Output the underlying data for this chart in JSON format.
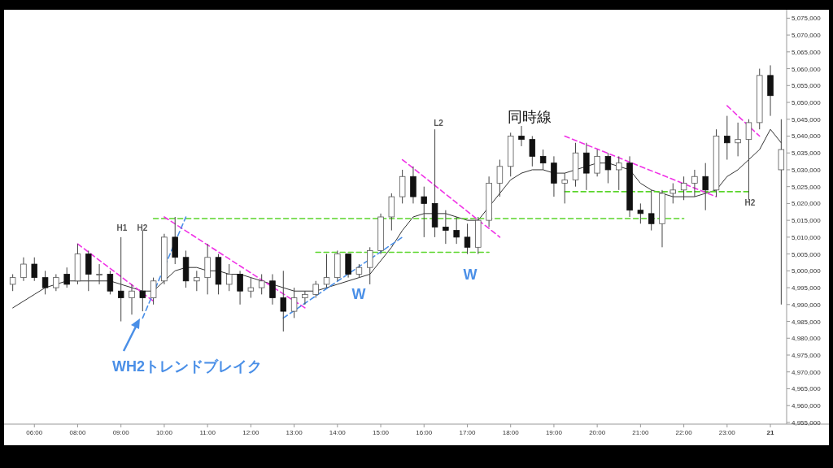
{
  "chart_data": {
    "type": "candlestick",
    "categories": [
      null,
      null,
      "06:00",
      null,
      null,
      null,
      "08:00",
      null,
      null,
      null,
      "09:00",
      null,
      null,
      null,
      "10:00",
      null,
      null,
      null,
      "11:00",
      null,
      null,
      null,
      "12:00",
      null,
      null,
      null,
      "13:00",
      null,
      null,
      null,
      "14:00",
      null,
      null,
      null,
      "15:00",
      null,
      null,
      null,
      "16:00",
      null,
      null,
      null,
      "17:00",
      null,
      null,
      null,
      "18:00",
      null,
      null,
      null,
      "19:00",
      null,
      null,
      null,
      "20:00",
      null,
      null,
      null,
      "21:00",
      null,
      null,
      null,
      "22:00",
      null,
      null,
      null,
      "23:00",
      null,
      null,
      null,
      "21",
      null
    ],
    "ohlc": [
      [
        4996000,
        4999000,
        4994000,
        4998000
      ],
      [
        4998000,
        5004000,
        4997000,
        5002000
      ],
      [
        5002000,
        5004000,
        4997000,
        4998000
      ],
      [
        4998000,
        5000000,
        4993000,
        4995000
      ],
      [
        4995000,
        4999000,
        4994000,
        4998000
      ],
      [
        4999000,
        5001000,
        4995000,
        4996000
      ],
      [
        4997000,
        5008000,
        4996000,
        5005000
      ],
      [
        5005000,
        5006000,
        4994000,
        4999000
      ],
      [
        4999000,
        5002000,
        4996000,
        4999000
      ],
      [
        4999000,
        5000000,
        4993000,
        4994000
      ],
      [
        4994000,
        5010000,
        4985000,
        4992000
      ],
      [
        4992000,
        4996000,
        4987000,
        4994000
      ],
      [
        4994000,
        5012000,
        4988000,
        4992000
      ],
      [
        4992000,
        4998000,
        4990000,
        4997000
      ],
      [
        4997000,
        5011000,
        4996000,
        5010000
      ],
      [
        5010000,
        5016000,
        5002000,
        5004000
      ],
      [
        5004000,
        5006000,
        4995000,
        4997000
      ],
      [
        4997000,
        5000000,
        4994000,
        4998000
      ],
      [
        4998000,
        5008000,
        4993000,
        5004000
      ],
      [
        5004000,
        5005000,
        4993000,
        4996000
      ],
      [
        4996000,
        5002000,
        4994000,
        4999000
      ],
      [
        4999000,
        5000000,
        4990000,
        4994000
      ],
      [
        4994000,
        4998000,
        4992000,
        4995000
      ],
      [
        4995000,
        4999000,
        4993000,
        4997000
      ],
      [
        4997000,
        4999000,
        4990000,
        4992000
      ],
      [
        4992000,
        5000000,
        4982000,
        4988000
      ],
      [
        4988000,
        4995000,
        4986000,
        4992000
      ],
      [
        4992000,
        4994000,
        4990000,
        4993000
      ],
      [
        4993000,
        4997000,
        4992000,
        4996000
      ],
      [
        4996000,
        5005000,
        4995000,
        4998000
      ],
      [
        4998000,
        5006000,
        4997000,
        5005000
      ],
      [
        5005000,
        5005000,
        4998000,
        4999000
      ],
      [
        4999000,
        5002000,
        4998000,
        5001000
      ],
      [
        5001000,
        5007000,
        4996000,
        5006000
      ],
      [
        5006000,
        5017000,
        5005000,
        5016000
      ],
      [
        5016000,
        5023000,
        5012000,
        5022000
      ],
      [
        5022000,
        5030000,
        5020000,
        5028000
      ],
      [
        5028000,
        5031000,
        5020000,
        5022000
      ],
      [
        5022000,
        5025000,
        5010000,
        5020000
      ],
      [
        5020000,
        5042000,
        5010000,
        5013000
      ],
      [
        5013000,
        5018000,
        5008000,
        5012000
      ],
      [
        5012000,
        5016000,
        5008000,
        5010000
      ],
      [
        5010000,
        5014000,
        5005000,
        5007000
      ],
      [
        5007000,
        5016000,
        5005000,
        5015000
      ],
      [
        5015000,
        5028000,
        5013000,
        5026000
      ],
      [
        5026000,
        5033000,
        5022000,
        5031000
      ],
      [
        5031000,
        5041000,
        5028000,
        5040000
      ],
      [
        5040000,
        5043000,
        5037000,
        5039000
      ],
      [
        5039000,
        5040000,
        5031000,
        5034000
      ],
      [
        5034000,
        5036000,
        5030000,
        5032000
      ],
      [
        5032000,
        5034000,
        5022000,
        5026000
      ],
      [
        5026000,
        5029000,
        5020000,
        5027000
      ],
      [
        5027000,
        5038000,
        5025000,
        5035000
      ],
      [
        5035000,
        5038000,
        5024000,
        5029000
      ],
      [
        5029000,
        5036000,
        5028000,
        5034000
      ],
      [
        5034000,
        5035000,
        5026000,
        5030000
      ],
      [
        5030000,
        5034000,
        5024000,
        5032000
      ],
      [
        5032000,
        5034000,
        5016000,
        5018000
      ],
      [
        5018000,
        5020000,
        5014000,
        5017000
      ],
      [
        5017000,
        5024000,
        5012000,
        5014000
      ],
      [
        5014000,
        5024000,
        5007000,
        5023000
      ],
      [
        5023000,
        5026000,
        5020000,
        5024000
      ],
      [
        5024000,
        5028000,
        5021000,
        5026000
      ],
      [
        5026000,
        5030000,
        5022000,
        5028000
      ],
      [
        5028000,
        5032000,
        5018000,
        5024000
      ],
      [
        5024000,
        5042000,
        5022000,
        5040000
      ],
      [
        5040000,
        5046000,
        5033000,
        5038000
      ],
      [
        5038000,
        5044000,
        5034000,
        5039000
      ],
      [
        5039000,
        5045000,
        5021000,
        5044000
      ],
      [
        5044000,
        5060000,
        5042000,
        5058000
      ],
      [
        5058000,
        5061000,
        5046000,
        5052000
      ],
      [
        5030000,
        5045000,
        4990000,
        5036000
      ]
    ],
    "series": [
      {
        "type": "line",
        "color": "#333333",
        "values": [
          4989000,
          4991000,
          4993000,
          4995000,
          4996000,
          4997000,
          4997000,
          4997000,
          4997000,
          4997000,
          4996000,
          4995000,
          4994000,
          4994000,
          4997000,
          5000000,
          5001000,
          5001000,
          5000000,
          5000000,
          4999000,
          4999000,
          4998000,
          4997000,
          4996000,
          4995000,
          4994000,
          4994000,
          4994000,
          4995000,
          4996000,
          4997000,
          4998000,
          4999000,
          5003000,
          5007000,
          5012000,
          5016000,
          5017000,
          5017000,
          5017000,
          5016000,
          5015000,
          5015000,
          5019000,
          5023000,
          5027000,
          5029000,
          5030000,
          5030000,
          5029000,
          5029000,
          5030000,
          5031000,
          5032000,
          5032000,
          5031000,
          5030000,
          5026000,
          5024000,
          5023000,
          5022000,
          5022000,
          5022000,
          5023000,
          5024000,
          5028000,
          5030000,
          5033000,
          5036000,
          5042000,
          5038000
        ]
      },
      {
        "type": "line",
        "color": "#5ad52a",
        "line_style": "dashed",
        "values": [
          null,
          null,
          null,
          null,
          null,
          null,
          null,
          null,
          null,
          null,
          null,
          null,
          null,
          5015500,
          null,
          null,
          null,
          null,
          null,
          null,
          null,
          null,
          null,
          null,
          null,
          null,
          null,
          null,
          null,
          null,
          null,
          null,
          null,
          null,
          null,
          null,
          null,
          null,
          null,
          null,
          null,
          null,
          null,
          null,
          null,
          null,
          null,
          null,
          null,
          null,
          null,
          null,
          null,
          null,
          null,
          null,
          null,
          null,
          null,
          null,
          null,
          null,
          5015500,
          null,
          null,
          null,
          null,
          null,
          null,
          null,
          null,
          null
        ]
      },
      {
        "type": "line",
        "color": "#5ad52a",
        "line_style": "dashed",
        "values": [
          null,
          null,
          null,
          null,
          null,
          null,
          null,
          null,
          null,
          null,
          null,
          null,
          null,
          null,
          null,
          null,
          null,
          null,
          null,
          null,
          null,
          null,
          null,
          null,
          null,
          null,
          null,
          null,
          5005500,
          null,
          null,
          null,
          null,
          null,
          null,
          null,
          null,
          null,
          null,
          null,
          null,
          null,
          null,
          null,
          5005500,
          null,
          null,
          null,
          null,
          null,
          null,
          null,
          null,
          null,
          null,
          null,
          null,
          null,
          null,
          null,
          null,
          null,
          null,
          null,
          null,
          null,
          null,
          null,
          null,
          null,
          null,
          null
        ]
      },
      {
        "type": "line",
        "color": "#5ad52a",
        "line_style": "dashed",
        "values": [
          null,
          null,
          null,
          null,
          null,
          null,
          null,
          null,
          null,
          null,
          null,
          null,
          null,
          null,
          null,
          null,
          null,
          null,
          null,
          null,
          null,
          null,
          null,
          null,
          null,
          null,
          null,
          null,
          null,
          null,
          null,
          null,
          null,
          null,
          null,
          null,
          null,
          null,
          null,
          null,
          null,
          null,
          null,
          null,
          null,
          null,
          null,
          null,
          null,
          null,
          null,
          5023500,
          null,
          null,
          null,
          null,
          null,
          null,
          null,
          null,
          null,
          null,
          null,
          null,
          null,
          null,
          null,
          null,
          5023500,
          null,
          null,
          null
        ]
      },
      {
        "type": "line",
        "color": "#f032e6",
        "line_style": "dashed",
        "values": [
          null,
          null,
          null,
          null,
          null,
          null,
          5008000,
          null,
          null,
          null,
          null,
          null,
          null,
          4991000,
          null,
          null,
          null,
          null,
          null,
          null,
          null,
          null,
          null,
          null,
          null,
          null,
          null,
          null,
          null,
          null,
          null,
          null,
          null,
          null,
          null,
          null,
          null,
          null,
          null,
          null,
          null,
          null,
          null,
          null,
          null,
          null,
          null,
          null,
          null,
          null,
          null,
          null,
          null,
          null,
          null,
          null,
          null,
          null,
          null,
          null,
          null,
          null,
          null,
          null,
          null,
          null,
          null,
          null,
          null,
          null,
          null,
          null
        ]
      },
      {
        "type": "line",
        "color": "#f032e6",
        "line_style": "dashed",
        "values": [
          null,
          null,
          null,
          null,
          null,
          null,
          null,
          null,
          null,
          null,
          null,
          null,
          null,
          null,
          5016000,
          null,
          null,
          null,
          null,
          null,
          null,
          null,
          null,
          null,
          null,
          null,
          null,
          4989000,
          null,
          null,
          null,
          null,
          null,
          null,
          null,
          null,
          null,
          null,
          null,
          null,
          null,
          null,
          null,
          null,
          null,
          null,
          null,
          null,
          null,
          null,
          null,
          null,
          null,
          null,
          null,
          null,
          null,
          null,
          null,
          null,
          null,
          null,
          null,
          null,
          null,
          null,
          null,
          null,
          null,
          null,
          null,
          null
        ]
      },
      {
        "type": "line",
        "color": "#f032e6",
        "line_style": "dashed",
        "values": [
          null,
          null,
          null,
          null,
          null,
          null,
          null,
          null,
          null,
          null,
          null,
          null,
          null,
          null,
          null,
          null,
          null,
          null,
          null,
          null,
          null,
          null,
          null,
          null,
          null,
          null,
          null,
          null,
          null,
          null,
          null,
          null,
          null,
          null,
          null,
          null,
          5033000,
          null,
          null,
          null,
          null,
          null,
          null,
          null,
          null,
          5010000,
          null,
          null,
          null,
          null,
          null,
          null,
          null,
          null,
          null,
          null,
          null,
          null,
          null,
          null,
          null,
          null,
          null,
          null,
          null,
          null,
          null,
          null,
          null,
          null,
          null,
          null
        ]
      },
      {
        "type": "line",
        "color": "#f032e6",
        "line_style": "dashed",
        "values": [
          null,
          null,
          null,
          null,
          null,
          null,
          null,
          null,
          null,
          null,
          null,
          null,
          null,
          null,
          null,
          null,
          null,
          null,
          null,
          null,
          null,
          null,
          null,
          null,
          null,
          null,
          null,
          null,
          null,
          null,
          null,
          null,
          null,
          null,
          null,
          null,
          null,
          null,
          null,
          null,
          null,
          null,
          null,
          null,
          null,
          null,
          null,
          null,
          null,
          null,
          null,
          5040000,
          null,
          null,
          null,
          null,
          null,
          null,
          null,
          null,
          null,
          null,
          null,
          null,
          null,
          5022000,
          null,
          null,
          null,
          null,
          null,
          null
        ]
      },
      {
        "type": "line",
        "color": "#f032e6",
        "line_style": "dashed",
        "values": [
          null,
          null,
          null,
          null,
          null,
          null,
          null,
          null,
          null,
          null,
          null,
          null,
          null,
          null,
          null,
          null,
          null,
          null,
          null,
          null,
          null,
          null,
          null,
          null,
          null,
          null,
          null,
          null,
          null,
          null,
          null,
          null,
          null,
          null,
          null,
          null,
          null,
          null,
          null,
          null,
          null,
          null,
          null,
          null,
          null,
          null,
          null,
          null,
          null,
          null,
          null,
          null,
          null,
          null,
          null,
          null,
          null,
          null,
          null,
          null,
          null,
          null,
          null,
          null,
          null,
          null,
          5049000,
          null,
          null,
          5040000,
          null,
          null
        ]
      },
      {
        "type": "line",
        "color": "#4a8fe7",
        "line_style": "dashed",
        "values": [
          null,
          null,
          null,
          null,
          null,
          null,
          null,
          null,
          null,
          null,
          null,
          null,
          4986000,
          null,
          null,
          null,
          5016000,
          null,
          null,
          null,
          null,
          null,
          null,
          null,
          null,
          null,
          null,
          null,
          null,
          null,
          null,
          null,
          null,
          null,
          null,
          null,
          null,
          null,
          null,
          null,
          null,
          null,
          null,
          null,
          null,
          null,
          null,
          null,
          null,
          null,
          null,
          null,
          null,
          null,
          null,
          null,
          null,
          null,
          null,
          null,
          null,
          null,
          null,
          null,
          null,
          null,
          null,
          null,
          null,
          null,
          null,
          null
        ]
      },
      {
        "type": "line",
        "color": "#4a8fe7",
        "line_style": "dashed",
        "values": [
          null,
          null,
          null,
          null,
          null,
          null,
          null,
          null,
          null,
          null,
          null,
          null,
          null,
          null,
          null,
          null,
          null,
          null,
          null,
          null,
          null,
          null,
          null,
          null,
          null,
          4986000,
          null,
          null,
          null,
          null,
          null,
          null,
          null,
          null,
          null,
          null,
          5010000,
          null,
          null,
          null,
          null,
          null,
          null,
          null,
          null,
          null,
          null,
          null,
          null,
          null,
          null,
          null,
          null,
          null,
          null,
          null,
          null,
          null,
          null,
          null,
          null,
          null,
          null,
          null,
          null,
          null,
          null,
          null,
          null,
          null,
          null,
          null
        ]
      }
    ],
    "ylim": [
      4954500,
      5077500
    ],
    "yticks": [
      {
        "value": 4955000,
        "label": "4,955,000"
      },
      {
        "value": 4960000,
        "label": "4,960,000"
      },
      {
        "value": 4965000,
        "label": "4,965,000"
      },
      {
        "value": 4970000,
        "label": "4,970,000"
      },
      {
        "value": 4975000,
        "label": "4,975,000"
      },
      {
        "value": 4980000,
        "label": "4,980,000"
      },
      {
        "value": 4985000,
        "label": "4,985,000"
      },
      {
        "value": 4990000,
        "label": "4,990,000"
      },
      {
        "value": 4995000,
        "label": "4,995,000"
      },
      {
        "value": 5000000,
        "label": "5,000,000"
      },
      {
        "value": 5005000,
        "label": "5,005,000"
      },
      {
        "value": 5010000,
        "label": "5,010,000"
      },
      {
        "value": 5015000,
        "label": "5,015,000"
      },
      {
        "value": 5020000,
        "label": "5,020,000"
      },
      {
        "value": 5025000,
        "label": "5,025,000"
      },
      {
        "value": 5030000,
        "label": "5,030,000"
      },
      {
        "value": 5035000,
        "label": "5,035,000"
      },
      {
        "value": 5040000,
        "label": "5,040,000"
      },
      {
        "value": 5045000,
        "label": "5,045,000"
      },
      {
        "value": 5050000,
        "label": "5,050,000"
      },
      {
        "value": 5055000,
        "label": "5,055,000"
      },
      {
        "value": 5060000,
        "label": "5,060,000"
      },
      {
        "value": 5065000,
        "label": "5,065,000"
      },
      {
        "value": 5070000,
        "label": "5,070,000"
      },
      {
        "value": 5075000,
        "label": "5,075,000"
      }
    ],
    "annotations": [
      "H1",
      "H2",
      "L2",
      "W",
      "W",
      "同時線",
      "H2",
      "WH2トレンドブレイク"
    ]
  }
}
